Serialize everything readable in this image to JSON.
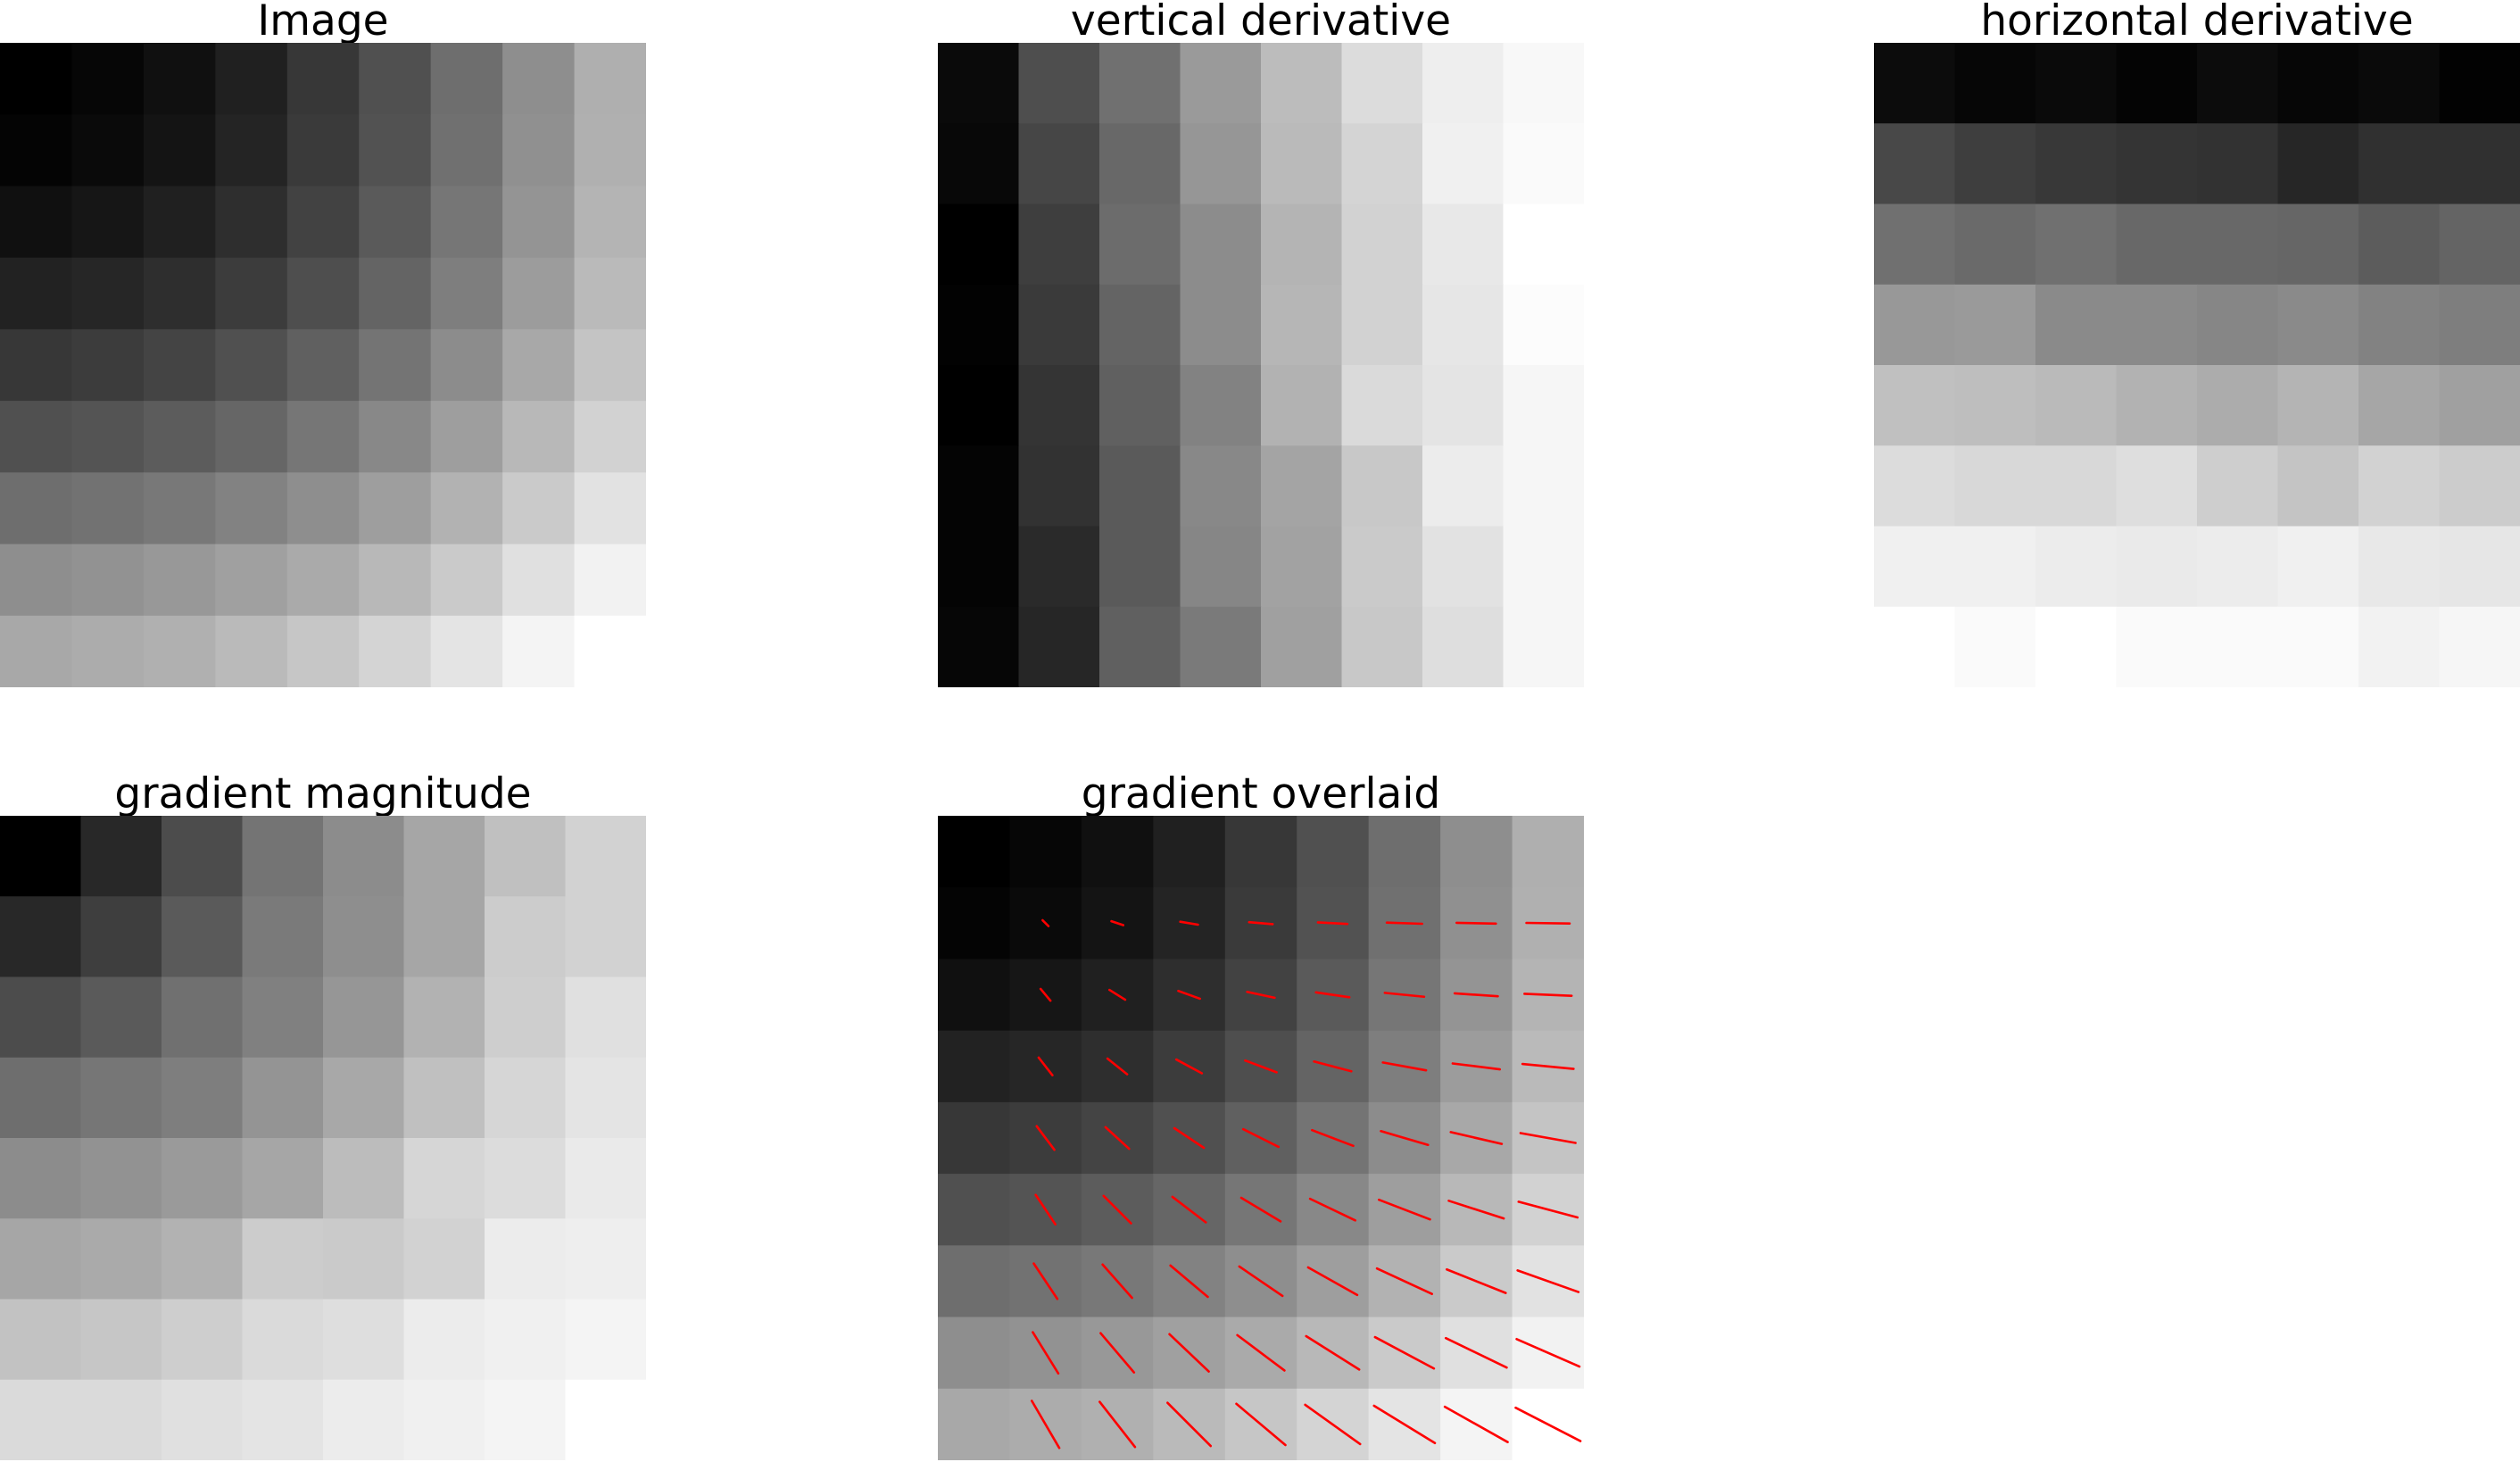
{
  "chart_data": [
    {
      "type": "heatmap",
      "title": "Image",
      "colormap": "gray",
      "axes": "off",
      "rows": 9,
      "cols": 9,
      "values": [
        [
          0,
          6,
          16,
          32,
          55,
          80,
          110,
          142,
          175
        ],
        [
          4,
          10,
          20,
          36,
          58,
          82,
          112,
          144,
          176
        ],
        [
          16,
          22,
          32,
          46,
          66,
          90,
          118,
          148,
          180
        ],
        [
          34,
          38,
          46,
          60,
          78,
          100,
          126,
          156,
          186
        ],
        [
          55,
          60,
          68,
          80,
          96,
          116,
          140,
          168,
          196
        ],
        [
          80,
          84,
          92,
          102,
          118,
          136,
          158,
          184,
          210
        ],
        [
          110,
          114,
          120,
          130,
          142,
          158,
          178,
          202,
          226
        ],
        [
          142,
          146,
          152,
          160,
          170,
          184,
          202,
          224,
          242
        ],
        [
          168,
          172,
          176,
          186,
          198,
          212,
          228,
          244,
          255
        ]
      ]
    },
    {
      "type": "heatmap",
      "title": "vertical derivative",
      "colormap": "gray",
      "axes": "off",
      "rows": 8,
      "cols": 8,
      "values": [
        [
          10,
          78,
          112,
          154,
          188,
          220,
          238,
          248
        ],
        [
          8,
          70,
          104,
          150,
          186,
          212,
          240,
          250
        ],
        [
          0,
          62,
          108,
          140,
          180,
          210,
          232,
          255
        ],
        [
          2,
          58,
          100,
          140,
          182,
          210,
          230,
          252
        ],
        [
          0,
          52,
          96,
          130,
          178,
          218,
          228,
          246
        ],
        [
          4,
          50,
          90,
          136,
          164,
          200,
          236,
          246
        ],
        [
          4,
          42,
          90,
          134,
          162,
          202,
          226,
          246
        ],
        [
          6,
          38,
          96,
          122,
          160,
          200,
          222,
          246
        ]
      ]
    },
    {
      "type": "heatmap",
      "title": "horizontal derivative",
      "colormap": "gray",
      "axes": "off",
      "rows": 8,
      "cols": 8,
      "values": [
        [
          12,
          6,
          10,
          4,
          12,
          6,
          10,
          2
        ],
        [
          72,
          62,
          56,
          52,
          50,
          38,
          48,
          48
        ],
        [
          112,
          106,
          112,
          104,
          104,
          102,
          92,
          100
        ],
        [
          152,
          154,
          138,
          138,
          134,
          138,
          130,
          126
        ],
        [
          192,
          190,
          186,
          178,
          172,
          180,
          166,
          160
        ],
        [
          220,
          216,
          216,
          222,
          206,
          196,
          210,
          204
        ],
        [
          240,
          240,
          236,
          234,
          236,
          240,
          232,
          230
        ],
        [
          255,
          250,
          255,
          250,
          250,
          250,
          242,
          246
        ]
      ]
    },
    {
      "type": "heatmap",
      "title": "gradient magnitude",
      "colormap": "gray",
      "axes": "off",
      "rows": 8,
      "cols": 8,
      "values": [
        [
          0,
          40,
          76,
          116,
          140,
          166,
          192,
          210
        ],
        [
          40,
          62,
          90,
          122,
          142,
          166,
          204,
          210
        ],
        [
          76,
          90,
          112,
          128,
          150,
          178,
          206,
          224
        ],
        [
          110,
          118,
          126,
          148,
          168,
          192,
          214,
          228
        ],
        [
          140,
          146,
          154,
          166,
          188,
          214,
          220,
          234
        ],
        [
          166,
          170,
          178,
          204,
          202,
          210,
          236,
          238
        ],
        [
          194,
          198,
          206,
          218,
          222,
          236,
          240,
          244
        ],
        [
          218,
          218,
          224,
          228,
          236,
          240,
          244,
          255
        ]
      ]
    },
    {
      "type": "heatmap",
      "title": "gradient overlaid",
      "colormap": "gray",
      "axes": "off",
      "overlay": "gradient arrows",
      "overlay_color": "#ff0000",
      "rows": 9,
      "cols": 9,
      "values": [
        [
          0,
          6,
          16,
          32,
          55,
          80,
          110,
          142,
          175
        ],
        [
          4,
          10,
          20,
          36,
          58,
          82,
          112,
          144,
          176
        ],
        [
          16,
          22,
          32,
          46,
          66,
          90,
          118,
          148,
          180
        ],
        [
          34,
          38,
          46,
          60,
          78,
          100,
          126,
          156,
          186
        ],
        [
          55,
          60,
          68,
          80,
          96,
          116,
          140,
          168,
          196
        ],
        [
          80,
          84,
          92,
          102,
          118,
          136,
          158,
          184,
          210
        ],
        [
          110,
          114,
          120,
          130,
          142,
          158,
          178,
          202,
          226
        ],
        [
          142,
          146,
          152,
          160,
          170,
          184,
          202,
          224,
          242
        ],
        [
          168,
          172,
          176,
          186,
          198,
          212,
          228,
          244,
          255
        ]
      ],
      "vectors": {
        "rows": 8,
        "cols": 8,
        "dx": [
          [
            0.3,
            0.6,
            0.9,
            1.2,
            1.5,
            1.8,
            2.0,
            2.2
          ],
          [
            0.5,
            0.8,
            1.1,
            1.4,
            1.7,
            2.0,
            2.2,
            2.4
          ],
          [
            0.7,
            1.0,
            1.3,
            1.6,
            1.9,
            2.2,
            2.4,
            2.6
          ],
          [
            0.9,
            1.2,
            1.5,
            1.8,
            2.1,
            2.4,
            2.6,
            2.8
          ],
          [
            1.0,
            1.4,
            1.7,
            2.0,
            2.3,
            2.6,
            2.8,
            3.0
          ],
          [
            1.2,
            1.5,
            1.9,
            2.2,
            2.5,
            2.8,
            3.0,
            3.1
          ],
          [
            1.3,
            1.7,
            2.0,
            2.4,
            2.7,
            3.0,
            3.1,
            3.2
          ],
          [
            1.4,
            1.8,
            2.2,
            2.5,
            2.8,
            3.1,
            3.2,
            3.3
          ]
        ],
        "dy": [
          [
            0.3,
            0.2,
            0.15,
            0.1,
            0.08,
            0.06,
            0.04,
            0.03
          ],
          [
            0.6,
            0.5,
            0.4,
            0.3,
            0.25,
            0.2,
            0.15,
            0.1
          ],
          [
            0.9,
            0.8,
            0.7,
            0.6,
            0.5,
            0.4,
            0.3,
            0.25
          ],
          [
            1.2,
            1.1,
            1.0,
            0.9,
            0.8,
            0.7,
            0.6,
            0.5
          ],
          [
            1.5,
            1.4,
            1.3,
            1.2,
            1.1,
            1.0,
            0.9,
            0.8
          ],
          [
            1.8,
            1.7,
            1.6,
            1.5,
            1.4,
            1.3,
            1.2,
            1.1
          ],
          [
            2.1,
            2.0,
            1.9,
            1.8,
            1.7,
            1.6,
            1.5,
            1.4
          ],
          [
            2.4,
            2.3,
            2.2,
            2.1,
            2.0,
            1.9,
            1.8,
            1.7
          ]
        ]
      }
    }
  ]
}
